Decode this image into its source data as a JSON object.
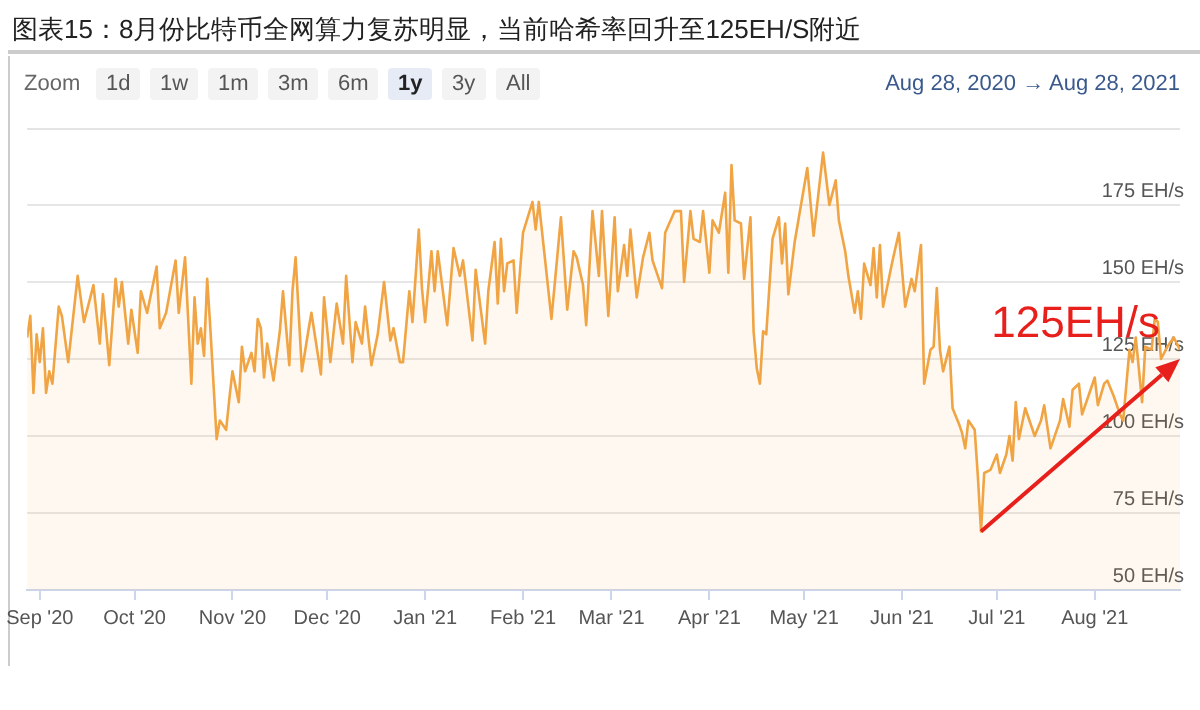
{
  "chart_data": {
    "type": "area",
    "title": "图表15：8月份比特币全网算力复苏明显，当前哈希率回升至125EH/S附近",
    "xlim": [
      "2020-08-28",
      "2021-08-28"
    ],
    "xticks": [
      {
        "value": "2020-09-01",
        "label": "Sep '20"
      },
      {
        "value": "2020-10-01",
        "label": "Oct '20"
      },
      {
        "value": "2020-11-01",
        "label": "Nov '20"
      },
      {
        "value": "2020-12-01",
        "label": "Dec '20"
      },
      {
        "value": "2021-01-01",
        "label": "Jan '21"
      },
      {
        "value": "2021-02-01",
        "label": "Feb '21"
      },
      {
        "value": "2021-03-01",
        "label": "Mar '21"
      },
      {
        "value": "2021-04-01",
        "label": "Apr '21"
      },
      {
        "value": "2021-05-01",
        "label": "May '21"
      },
      {
        "value": "2021-06-01",
        "label": "Jun '21"
      },
      {
        "value": "2021-07-01",
        "label": "Jul '21"
      },
      {
        "value": "2021-08-01",
        "label": "Aug '21"
      }
    ],
    "ylim": [
      50,
      200
    ],
    "yticks": [
      {
        "value": 50,
        "label": "50 EH/s"
      },
      {
        "value": 75,
        "label": "75 EH/s"
      },
      {
        "value": 100,
        "label": "100 EH/s"
      },
      {
        "value": 125,
        "label": "125 EH/s"
      },
      {
        "value": 150,
        "label": "150 EH/s"
      },
      {
        "value": 175,
        "label": "175 EH/s"
      }
    ],
    "grid": "y",
    "legend": false,
    "marker": "none",
    "line_style": "solid",
    "annotations": [
      "Zoom",
      "1d",
      "1w",
      "1m",
      "3m",
      "6m",
      "1y",
      "3y",
      "All",
      "Aug 28, 2020 → Aug 28, 2021",
      {
        "text": "125EH/s",
        "x": "2021-08-28",
        "y": 125
      }
    ],
    "series": [
      {
        "color": "#f0a443",
        "x": [
          "2020-08-28",
          "2020-08-29",
          "2020-08-30",
          "2020-08-31",
          "2020-09-01",
          "2020-09-02",
          "2020-09-03",
          "2020-09-04",
          "2020-09-05",
          "2020-09-07",
          "2020-09-08",
          "2020-09-10",
          "2020-09-13",
          "2020-09-15",
          "2020-09-18",
          "2020-09-20",
          "2020-09-21",
          "2020-09-23",
          "2020-09-25",
          "2020-09-26",
          "2020-09-27",
          "2020-09-29",
          "2020-09-30",
          "2020-10-02",
          "2020-10-03",
          "2020-10-05",
          "2020-10-08",
          "2020-10-09",
          "2020-10-11",
          "2020-10-14",
          "2020-10-15",
          "2020-10-17",
          "2020-10-19",
          "2020-10-20",
          "2020-10-21",
          "2020-10-22",
          "2020-10-23",
          "2020-10-24",
          "2020-10-25",
          "2020-10-27",
          "2020-10-28",
          "2020-10-30",
          "2020-10-31",
          "2020-11-01",
          "2020-11-03",
          "2020-11-04",
          "2020-11-05",
          "2020-11-07",
          "2020-11-08",
          "2020-11-09",
          "2020-11-10",
          "2020-11-11",
          "2020-11-12",
          "2020-11-14",
          "2020-11-16",
          "2020-11-17",
          "2020-11-19",
          "2020-11-20",
          "2020-11-21",
          "2020-11-23",
          "2020-11-25",
          "2020-11-26",
          "2020-11-29",
          "2020-11-30",
          "2020-12-02",
          "2020-12-04",
          "2020-12-06",
          "2020-12-07",
          "2020-12-09",
          "2020-12-10",
          "2020-12-12",
          "2020-12-13",
          "2020-12-15",
          "2020-12-17",
          "2020-12-19",
          "2020-12-21",
          "2020-12-22",
          "2020-12-24",
          "2020-12-25",
          "2020-12-27",
          "2020-12-28",
          "2020-12-30",
          "2020-12-31",
          "2021-01-01",
          "2021-01-03",
          "2021-01-04",
          "2021-01-05",
          "2021-01-08",
          "2021-01-10",
          "2021-01-12",
          "2021-01-13",
          "2021-01-16",
          "2021-01-17",
          "2021-01-20",
          "2021-01-21",
          "2021-01-23",
          "2021-01-24",
          "2021-01-25",
          "2021-01-26",
          "2021-01-27",
          "2021-01-29",
          "2021-01-30",
          "2021-02-01",
          "2021-02-04",
          "2021-02-05",
          "2021-02-06",
          "2021-02-08",
          "2021-02-10",
          "2021-02-13",
          "2021-02-15",
          "2021-02-17",
          "2021-02-18",
          "2021-02-20",
          "2021-02-21",
          "2021-02-23",
          "2021-02-25",
          "2021-02-26",
          "2021-02-28",
          "2021-03-02",
          "2021-03-03",
          "2021-03-05",
          "2021-03-06",
          "2021-03-07",
          "2021-03-09",
          "2021-03-11",
          "2021-03-13",
          "2021-03-14",
          "2021-03-17",
          "2021-03-18",
          "2021-03-21",
          "2021-03-23",
          "2021-03-24",
          "2021-03-26",
          "2021-03-27",
          "2021-03-29",
          "2021-03-30",
          "2021-04-01",
          "2021-04-02",
          "2021-04-04",
          "2021-04-06",
          "2021-04-07",
          "2021-04-08",
          "2021-04-09",
          "2021-04-11",
          "2021-04-12",
          "2021-04-14",
          "2021-04-15",
          "2021-04-16",
          "2021-04-17",
          "2021-04-18",
          "2021-04-19",
          "2021-04-21",
          "2021-04-23",
          "2021-04-24",
          "2021-04-25",
          "2021-04-26",
          "2021-04-28",
          "2021-05-01",
          "2021-05-02",
          "2021-05-04",
          "2021-05-06",
          "2021-05-07",
          "2021-05-09",
          "2021-05-11",
          "2021-05-12",
          "2021-05-14",
          "2021-05-15",
          "2021-05-17",
          "2021-05-18",
          "2021-05-19",
          "2021-05-20",
          "2021-05-22",
          "2021-05-23",
          "2021-05-24",
          "2021-05-25",
          "2021-05-26",
          "2021-05-29",
          "2021-05-31",
          "2021-06-02",
          "2021-06-04",
          "2021-06-05",
          "2021-06-07",
          "2021-06-08",
          "2021-06-10",
          "2021-06-11",
          "2021-06-12",
          "2021-06-13",
          "2021-06-14",
          "2021-06-16",
          "2021-06-17",
          "2021-06-19",
          "2021-06-20",
          "2021-06-21",
          "2021-06-22",
          "2021-06-24",
          "2021-06-25",
          "2021-06-26",
          "2021-06-27",
          "2021-06-29",
          "2021-07-01",
          "2021-07-02",
          "2021-07-04",
          "2021-07-05",
          "2021-07-06",
          "2021-07-07",
          "2021-07-08",
          "2021-07-10",
          "2021-07-12",
          "2021-07-13",
          "2021-07-15",
          "2021-07-16",
          "2021-07-18",
          "2021-07-19",
          "2021-07-21",
          "2021-07-22",
          "2021-07-24",
          "2021-07-25",
          "2021-07-27",
          "2021-07-28",
          "2021-07-30",
          "2021-08-01",
          "2021-08-02",
          "2021-08-04",
          "2021-08-05",
          "2021-08-07",
          "2021-08-09",
          "2021-08-10",
          "2021-08-12",
          "2021-08-13",
          "2021-08-14",
          "2021-08-16",
          "2021-08-17",
          "2021-08-19",
          "2021-08-20",
          "2021-08-21",
          "2021-08-22",
          "2021-08-24",
          "2021-08-26",
          "2021-08-28"
        ],
        "values": [
          132,
          139,
          114,
          133,
          124,
          135,
          114,
          121,
          117,
          142,
          139,
          124,
          152,
          137,
          149,
          130,
          146,
          123,
          151,
          142,
          150,
          130,
          141,
          127,
          147,
          140,
          155,
          135,
          140,
          157,
          140,
          158,
          117,
          145,
          130,
          135,
          126,
          151,
          135,
          99,
          105,
          102,
          112,
          121,
          111,
          129,
          121,
          127,
          121,
          138,
          135,
          119,
          130,
          118,
          134,
          147,
          123,
          147,
          158,
          121,
          134,
          140,
          120,
          145,
          124,
          143,
          130,
          152,
          124,
          137,
          130,
          142,
          123,
          133,
          150,
          131,
          135,
          124,
          124,
          147,
          137,
          167,
          148,
          137,
          160,
          147,
          160,
          136,
          161,
          152,
          157,
          131,
          154,
          130,
          147,
          163,
          143,
          164,
          147,
          156,
          157,
          140,
          166,
          176,
          167,
          176,
          157,
          138,
          171,
          141,
          160,
          158,
          149,
          136,
          173,
          152,
          173,
          139,
          171,
          147,
          162,
          152,
          167,
          145,
          158,
          166,
          157,
          148,
          166,
          173,
          173,
          150,
          173,
          164,
          163,
          173,
          153,
          170,
          166,
          179,
          153,
          188,
          170,
          169,
          151,
          171,
          134,
          122,
          117,
          134,
          133,
          164,
          171,
          156,
          169,
          146,
          163,
          181,
          187,
          165,
          183,
          192,
          175,
          183,
          170,
          160,
          152,
          140,
          147,
          138,
          156,
          149,
          161,
          145,
          162,
          142,
          157,
          166,
          142,
          151,
          147,
          162,
          117,
          128,
          129,
          148,
          128,
          121,
          129,
          109,
          104,
          101,
          96,
          105,
          102,
          87,
          69,
          88,
          89,
          94,
          88,
          94,
          100,
          92,
          111,
          99,
          109,
          103,
          100,
          105,
          110,
          96,
          99,
          105,
          112,
          103,
          115,
          117,
          107,
          113,
          119,
          110,
          117,
          118,
          113,
          107,
          105,
          128,
          124,
          132,
          111,
          129,
          128,
          138,
          137,
          125,
          129,
          132,
          128
        ]
      }
    ]
  }
}
